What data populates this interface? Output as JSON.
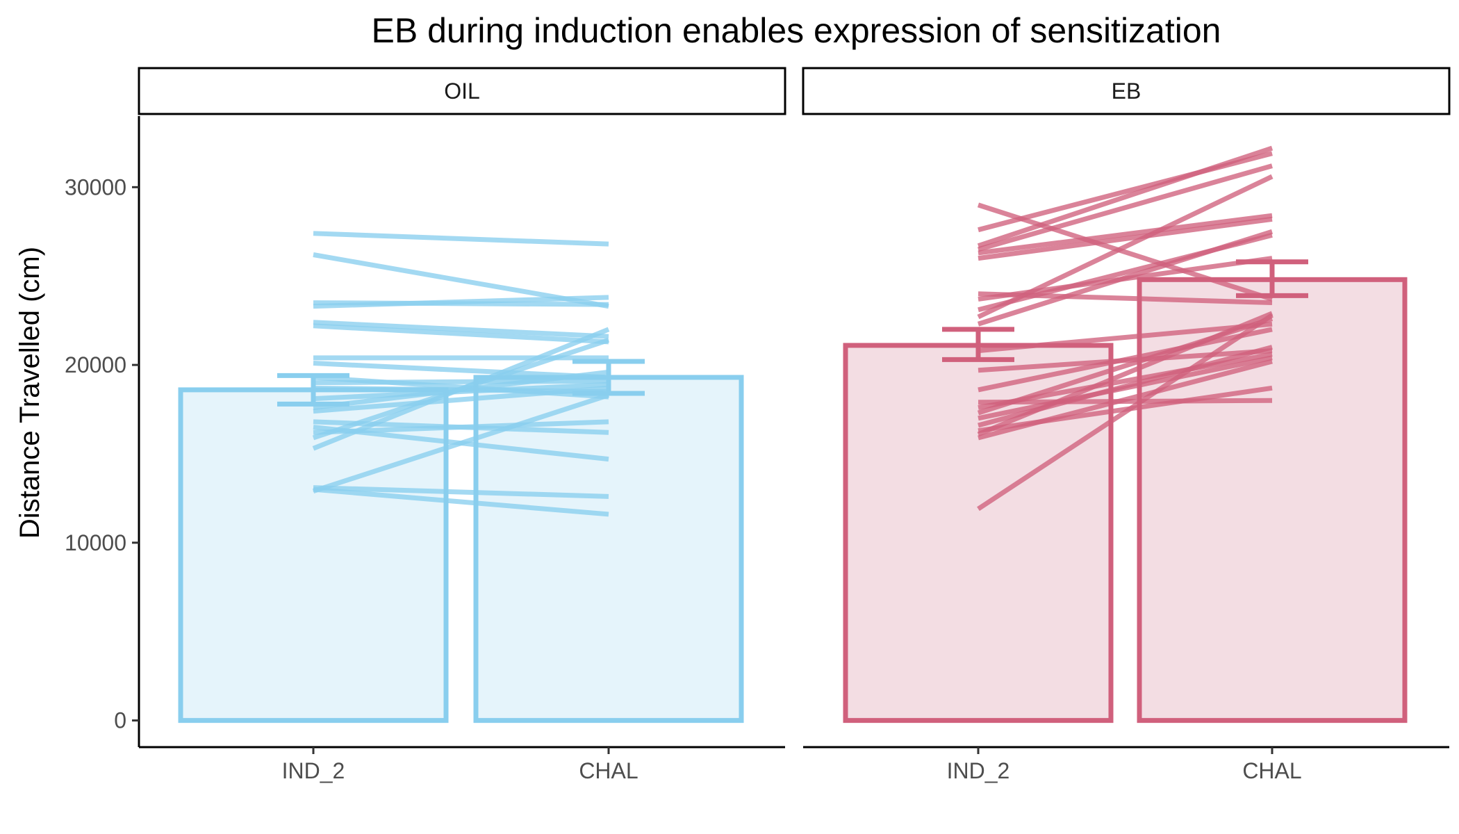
{
  "chart_data": {
    "type": "bar",
    "title": "EB during induction enables expression of sensitization",
    "ylabel": "Distance Travelled (cm)",
    "xlabel": "",
    "ylim": [
      -1500,
      34000
    ],
    "y_ticks": [
      0,
      10000,
      20000,
      30000
    ],
    "y_tick_labels": [
      "0",
      "10000",
      "20000",
      "30000"
    ],
    "categories": [
      "IND_2",
      "CHAL"
    ],
    "grid": false,
    "panels": [
      {
        "name": "OIL",
        "color": "#89CEEE",
        "fill": "#E5F4FB",
        "bars": [
          {
            "category": "IND_2",
            "value": 18600,
            "se_low": 17800,
            "se_high": 19400
          },
          {
            "category": "CHAL",
            "value": 19300,
            "se_low": 18400,
            "se_high": 20200
          }
        ],
        "subjects": [
          [
            27400,
            26800
          ],
          [
            26200,
            23300
          ],
          [
            23300,
            23800
          ],
          [
            23500,
            23400
          ],
          [
            22400,
            21600
          ],
          [
            22200,
            21300
          ],
          [
            20400,
            20400
          ],
          [
            20100,
            19300
          ],
          [
            19300,
            18200
          ],
          [
            19000,
            19100
          ],
          [
            18700,
            18500
          ],
          [
            18100,
            18900
          ],
          [
            17600,
            19600
          ],
          [
            17400,
            18700
          ],
          [
            16800,
            16200
          ],
          [
            16500,
            14700
          ],
          [
            16200,
            16800
          ],
          [
            15900,
            21400
          ],
          [
            15300,
            22000
          ],
          [
            13100,
            12600
          ],
          [
            13000,
            11600
          ],
          [
            12900,
            18300
          ]
        ]
      },
      {
        "name": "EB",
        "color": "#D0607C",
        "fill": "#F3DDE3",
        "bars": [
          {
            "category": "IND_2",
            "value": 21100,
            "se_low": 20300,
            "se_high": 22000
          },
          {
            "category": "CHAL",
            "value": 24800,
            "se_low": 23900,
            "se_high": 25800
          }
        ],
        "subjects": [
          [
            29000,
            23700
          ],
          [
            27600,
            31900
          ],
          [
            26700,
            32200
          ],
          [
            26500,
            31200
          ],
          [
            26300,
            28400
          ],
          [
            26000,
            28200
          ],
          [
            24000,
            23500
          ],
          [
            23700,
            26000
          ],
          [
            23100,
            27300
          ],
          [
            22700,
            30600
          ],
          [
            22300,
            27500
          ],
          [
            20800,
            22300
          ],
          [
            19700,
            20800
          ],
          [
            18600,
            22000
          ],
          [
            17900,
            18000
          ],
          [
            17600,
            20600
          ],
          [
            17300,
            22600
          ],
          [
            17000,
            20400
          ],
          [
            16600,
            21000
          ],
          [
            16300,
            18700
          ],
          [
            16100,
            22900
          ],
          [
            15900,
            20200
          ],
          [
            11900,
            22800
          ]
        ]
      }
    ]
  }
}
